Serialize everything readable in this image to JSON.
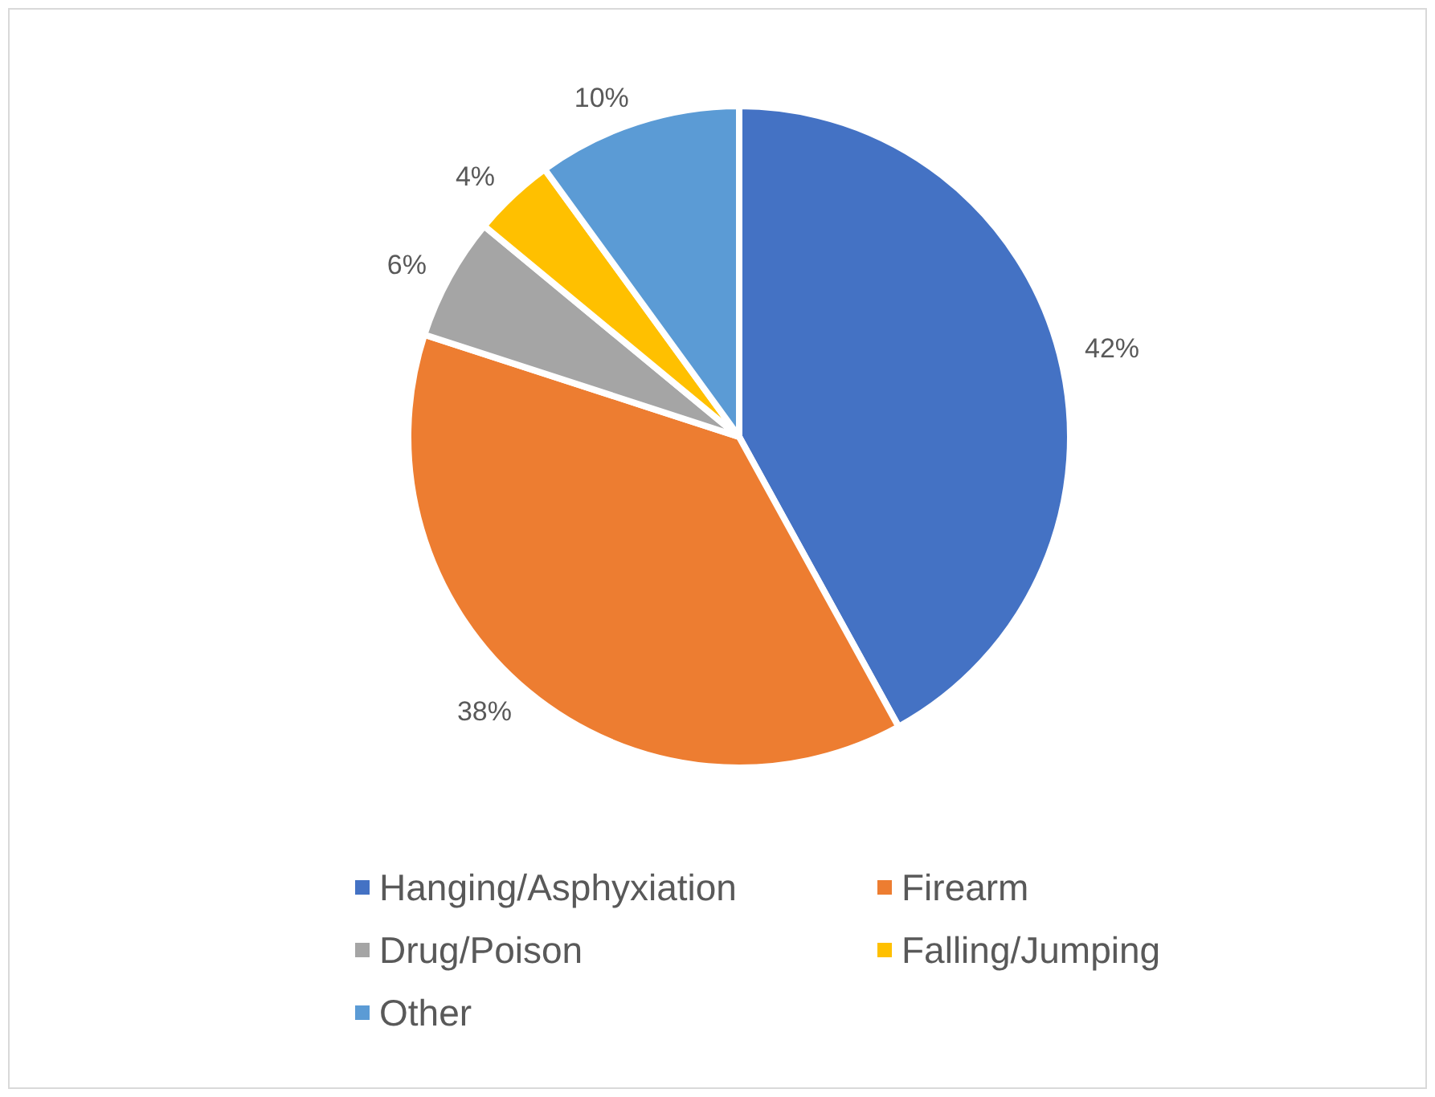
{
  "chart_data": {
    "type": "pie",
    "categories": [
      "Hanging/Asphyxiation",
      "Firearm",
      "Drug/Poison",
      "Falling/Jumping",
      "Other"
    ],
    "values": [
      42,
      38,
      6,
      4,
      10
    ],
    "colors": [
      "#4472c4",
      "#ed7d31",
      "#a5a5a5",
      "#ffc000",
      "#5b9bd5"
    ],
    "value_labels": [
      "42%",
      "38%",
      "6%",
      "4%",
      "10%"
    ],
    "legend": "bottom"
  }
}
